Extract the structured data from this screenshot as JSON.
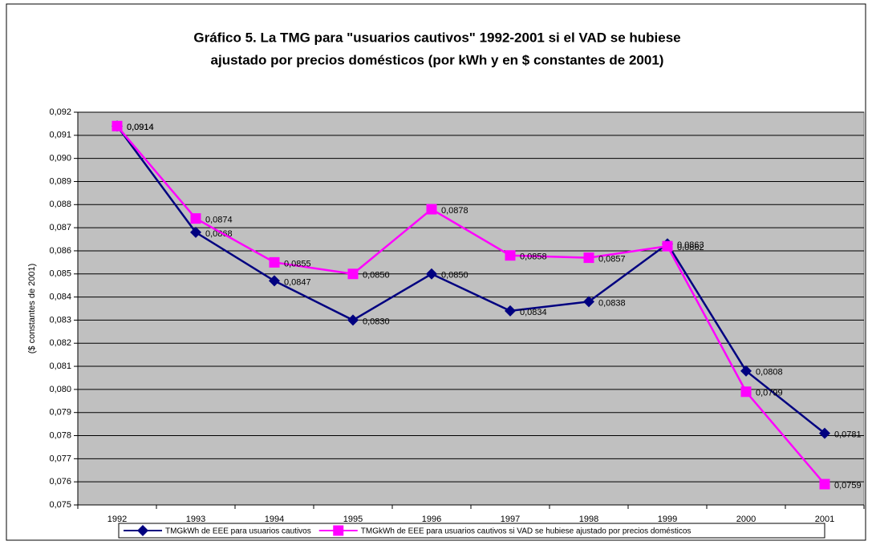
{
  "chart_data": {
    "type": "line",
    "title": [
      "Gráfico 5. La TMG para \"usuarios cautivos\" 1992-2001 si el VAD se hubiese",
      "ajustado por precios domésticos  (por kWh y en $ constantes de 2001)"
    ],
    "ylabel": "($ constantes de 2001)",
    "categories": [
      "1992",
      "1993",
      "1994",
      "1995",
      "1996",
      "1997",
      "1998",
      "1999",
      "2000",
      "2001"
    ],
    "series": [
      {
        "name": "TMGkWh de EEE para usuarios cautivos",
        "color": "#000080",
        "marker": "diamond",
        "values": [
          0.0914,
          0.0868,
          0.0847,
          0.083,
          0.085,
          0.0834,
          0.0838,
          0.0863,
          0.0808,
          0.0781
        ],
        "value_labels": [
          "0,0914",
          "0,0868",
          "0,0847",
          "0,0830",
          "0,0850",
          "0,0834",
          "0,0838",
          "0,0863",
          "0,0808",
          "0,0781"
        ]
      },
      {
        "name": "TMGkWh de EEE para usuarios cautivos si VAD se hubiese ajustado por precios domésticos",
        "color": "#ff00ff",
        "marker": "square",
        "values": [
          0.0914,
          0.0874,
          0.0855,
          0.085,
          0.0878,
          0.0858,
          0.0857,
          0.0862,
          0.0799,
          0.0759
        ],
        "value_labels": [
          "0,0914",
          "0,0874",
          "0,0855",
          "0,0850",
          "0,0878",
          "0,0858",
          "0,0857",
          "0,0862",
          "0,0799",
          "0,0759"
        ]
      }
    ],
    "ylim": [
      0.075,
      0.092
    ],
    "yticks": [
      {
        "value": 0.075,
        "label": "0,075"
      },
      {
        "value": 0.076,
        "label": "0,076"
      },
      {
        "value": 0.077,
        "label": "0,077"
      },
      {
        "value": 0.078,
        "label": "0,078"
      },
      {
        "value": 0.079,
        "label": "0,079"
      },
      {
        "value": 0.08,
        "label": "0,080"
      },
      {
        "value": 0.081,
        "label": "0,081"
      },
      {
        "value": 0.082,
        "label": "0,082"
      },
      {
        "value": 0.083,
        "label": "0,083"
      },
      {
        "value": 0.084,
        "label": "0,084"
      },
      {
        "value": 0.085,
        "label": "0,085"
      },
      {
        "value": 0.086,
        "label": "0,086"
      },
      {
        "value": 0.087,
        "label": "0,087"
      },
      {
        "value": 0.088,
        "label": "0,088"
      },
      {
        "value": 0.089,
        "label": "0,089"
      },
      {
        "value": 0.09,
        "label": "0,090"
      },
      {
        "value": 0.091,
        "label": "0,091"
      },
      {
        "value": 0.092,
        "label": "0,092"
      }
    ],
    "grid": true,
    "plot_background": "#c0c0c0",
    "legend": "bottom"
  }
}
